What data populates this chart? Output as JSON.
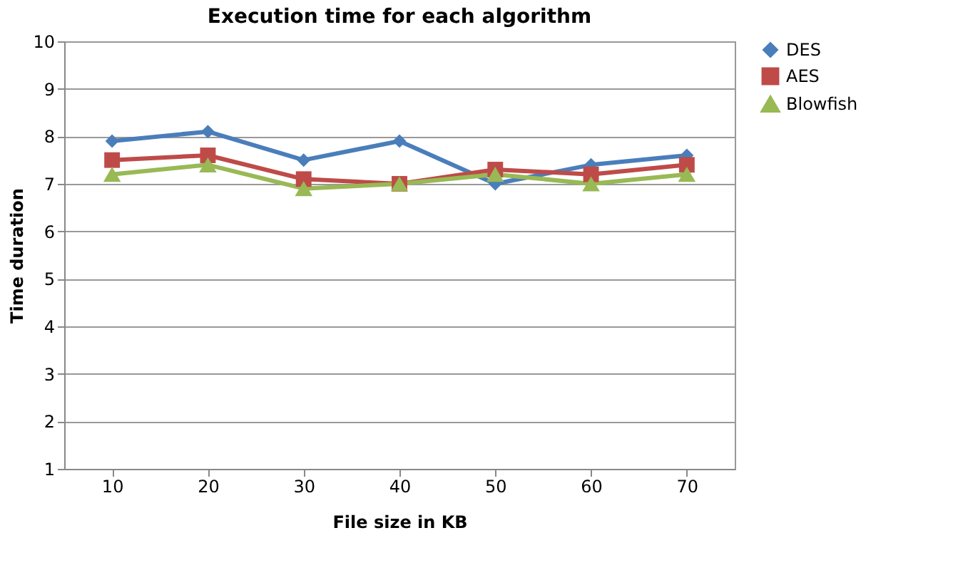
{
  "chart_data": {
    "type": "line",
    "title": "Execution time for each algorithm",
    "xlabel": "File size in KB",
    "ylabel": "Time duration",
    "categories": [
      "10",
      "20",
      "30",
      "40",
      "50",
      "60",
      "70"
    ],
    "series": [
      {
        "name": "DES",
        "color": "#4a7ebb",
        "marker": "diamond",
        "values": [
          7.9,
          8.1,
          7.5,
          7.9,
          7.0,
          7.4,
          7.6
        ]
      },
      {
        "name": "AES",
        "color": "#be4b48",
        "marker": "square",
        "values": [
          7.5,
          7.6,
          7.1,
          7.0,
          7.3,
          7.2,
          7.4
        ]
      },
      {
        "name": "Blowfish",
        "color": "#98b954",
        "marker": "triangle",
        "values": [
          7.2,
          7.4,
          6.9,
          7.0,
          7.2,
          7.0,
          7.2
        ]
      }
    ],
    "ylim": [
      1,
      10
    ],
    "yticks": [
      1,
      2,
      3,
      4,
      5,
      6,
      7,
      8,
      9,
      10
    ],
    "grid": "y",
    "legend": "right"
  }
}
